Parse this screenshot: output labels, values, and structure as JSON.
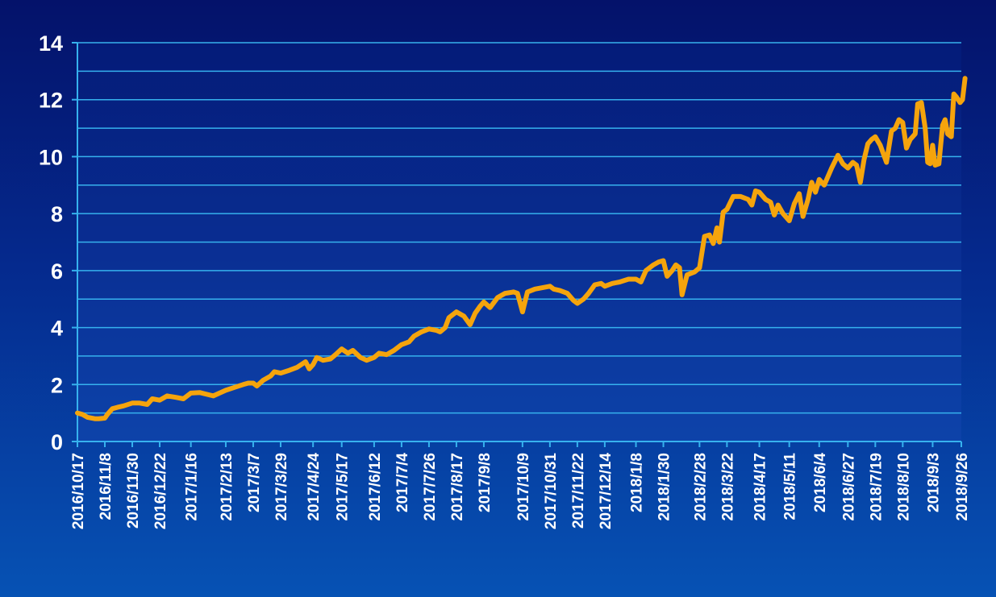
{
  "chart_data": {
    "type": "line",
    "title": "",
    "xlabel": "",
    "ylabel": "",
    "ylim": [
      0,
      14
    ],
    "y_ticks": [
      0,
      2,
      4,
      6,
      8,
      10,
      12,
      14
    ],
    "grid": true,
    "legend": "none",
    "x_tick_labels": [
      "2016/10/17",
      "2016/11/8",
      "2016/11/30",
      "2016/12/22",
      "2017/1/16",
      "2017/2/13",
      "2017/3/7",
      "2017/3/29",
      "2017/4/24",
      "2017/5/17",
      "2017/6/12",
      "2017/7/4",
      "2017/7/26",
      "2017/8/17",
      "2017/9/8",
      "2017/10/9",
      "2017/10/31",
      "2017/11/22",
      "2017/12/14",
      "2018/1/8",
      "2018/1/30",
      "2018/2/28",
      "2018/3/22",
      "2018/4/17",
      "2018/5/11",
      "2018/6/4",
      "2018/6/27",
      "2018/7/19",
      "2018/8/10",
      "2018/9/3",
      "2018/9/26"
    ],
    "series": [
      {
        "color": "#f5a40c",
        "points": [
          [
            "2016/10/17",
            1.0
          ],
          [
            "2016/10/21",
            0.95
          ],
          [
            "2016/10/25",
            0.85
          ],
          [
            "2016/10/31",
            0.8
          ],
          [
            "2016/11/3",
            0.8
          ],
          [
            "2016/11/8",
            0.82
          ],
          [
            "2016/11/10",
            0.95
          ],
          [
            "2016/11/14",
            1.15
          ],
          [
            "2016/11/18",
            1.2
          ],
          [
            "2016/11/23",
            1.25
          ],
          [
            "2016/11/30",
            1.35
          ],
          [
            "2016/12/6",
            1.35
          ],
          [
            "2016/12/12",
            1.3
          ],
          [
            "2016/12/16",
            1.5
          ],
          [
            "2016/12/22",
            1.45
          ],
          [
            "2016/12/28",
            1.6
          ],
          [
            "2017/1/4",
            1.55
          ],
          [
            "2017/1/10",
            1.5
          ],
          [
            "2017/1/16",
            1.7
          ],
          [
            "2017/1/23",
            1.72
          ],
          [
            "2017/2/3",
            1.6
          ],
          [
            "2017/2/8",
            1.7
          ],
          [
            "2017/2/13",
            1.8
          ],
          [
            "2017/2/20",
            1.9
          ],
          [
            "2017/2/27",
            2.0
          ],
          [
            "2017/3/3",
            2.05
          ],
          [
            "2017/3/7",
            2.05
          ],
          [
            "2017/3/10",
            1.95
          ],
          [
            "2017/3/15",
            2.15
          ],
          [
            "2017/3/21",
            2.3
          ],
          [
            "2017/3/24",
            2.45
          ],
          [
            "2017/3/29",
            2.4
          ],
          [
            "2017/4/5",
            2.5
          ],
          [
            "2017/4/11",
            2.6
          ],
          [
            "2017/4/18",
            2.8
          ],
          [
            "2017/4/21",
            2.55
          ],
          [
            "2017/4/24",
            2.7
          ],
          [
            "2017/4/27",
            2.95
          ],
          [
            "2017/5/2",
            2.85
          ],
          [
            "2017/5/8",
            2.9
          ],
          [
            "2017/5/12",
            3.05
          ],
          [
            "2017/5/17",
            3.25
          ],
          [
            "2017/5/22",
            3.1
          ],
          [
            "2017/5/26",
            3.2
          ],
          [
            "2017/6/1",
            2.95
          ],
          [
            "2017/6/6",
            2.85
          ],
          [
            "2017/6/12",
            2.95
          ],
          [
            "2017/6/16",
            3.1
          ],
          [
            "2017/6/22",
            3.05
          ],
          [
            "2017/6/28",
            3.2
          ],
          [
            "2017/7/4",
            3.4
          ],
          [
            "2017/7/10",
            3.5
          ],
          [
            "2017/7/14",
            3.7
          ],
          [
            "2017/7/20",
            3.85
          ],
          [
            "2017/7/26",
            3.95
          ],
          [
            "2017/8/1",
            3.9
          ],
          [
            "2017/8/4",
            3.85
          ],
          [
            "2017/8/8",
            4.0
          ],
          [
            "2017/8/11",
            4.35
          ],
          [
            "2017/8/17",
            4.55
          ],
          [
            "2017/8/23",
            4.4
          ],
          [
            "2017/8/28",
            4.1
          ],
          [
            "2017/9/1",
            4.5
          ],
          [
            "2017/9/5",
            4.75
          ],
          [
            "2017/9/8",
            4.9
          ],
          [
            "2017/9/13",
            4.7
          ],
          [
            "2017/9/19",
            5.05
          ],
          [
            "2017/9/25",
            5.2
          ],
          [
            "2017/10/2",
            5.25
          ],
          [
            "2017/10/5",
            5.2
          ],
          [
            "2017/10/9",
            4.55
          ],
          [
            "2017/10/13",
            5.25
          ],
          [
            "2017/10/19",
            5.35
          ],
          [
            "2017/10/25",
            5.4
          ],
          [
            "2017/10/31",
            5.45
          ],
          [
            "2017/11/3",
            5.35
          ],
          [
            "2017/11/8",
            5.3
          ],
          [
            "2017/11/14",
            5.2
          ],
          [
            "2017/11/19",
            4.95
          ],
          [
            "2017/11/22",
            4.85
          ],
          [
            "2017/11/27",
            5.0
          ],
          [
            "2017/12/1",
            5.2
          ],
          [
            "2017/12/6",
            5.5
          ],
          [
            "2017/12/11",
            5.55
          ],
          [
            "2017/12/14",
            5.45
          ],
          [
            "2017/12/20",
            5.55
          ],
          [
            "2017/12/26",
            5.6
          ],
          [
            "2018/1/2",
            5.7
          ],
          [
            "2018/1/8",
            5.7
          ],
          [
            "2018/1/12",
            5.6
          ],
          [
            "2018/1/16",
            6.0
          ],
          [
            "2018/1/22",
            6.2
          ],
          [
            "2018/1/26",
            6.3
          ],
          [
            "2018/1/30",
            6.35
          ],
          [
            "2018/2/2",
            5.8
          ],
          [
            "2018/2/6",
            6.0
          ],
          [
            "2018/2/9",
            6.2
          ],
          [
            "2018/2/12",
            6.1
          ],
          [
            "2018/2/14",
            5.15
          ],
          [
            "2018/2/18",
            5.85
          ],
          [
            "2018/2/24",
            5.95
          ],
          [
            "2018/2/28",
            6.1
          ],
          [
            "2018/3/4",
            7.2
          ],
          [
            "2018/3/8",
            7.25
          ],
          [
            "2018/3/11",
            6.95
          ],
          [
            "2018/3/14",
            7.5
          ],
          [
            "2018/3/16",
            7.0
          ],
          [
            "2018/3/19",
            8.05
          ],
          [
            "2018/3/22",
            8.15
          ],
          [
            "2018/3/27",
            8.6
          ],
          [
            "2018/4/2",
            8.6
          ],
          [
            "2018/4/8",
            8.5
          ],
          [
            "2018/4/11",
            8.3
          ],
          [
            "2018/4/14",
            8.8
          ],
          [
            "2018/4/17",
            8.75
          ],
          [
            "2018/4/22",
            8.5
          ],
          [
            "2018/4/26",
            8.4
          ],
          [
            "2018/4/29",
            7.95
          ],
          [
            "2018/5/2",
            8.3
          ],
          [
            "2018/5/6",
            8.0
          ],
          [
            "2018/5/11",
            7.75
          ],
          [
            "2018/5/15",
            8.35
          ],
          [
            "2018/5/19",
            8.7
          ],
          [
            "2018/5/22",
            7.9
          ],
          [
            "2018/5/26",
            8.5
          ],
          [
            "2018/5/29",
            9.1
          ],
          [
            "2018/6/1",
            8.75
          ],
          [
            "2018/6/4",
            9.2
          ],
          [
            "2018/6/8",
            9.0
          ],
          [
            "2018/6/14",
            9.6
          ],
          [
            "2018/6/19",
            10.05
          ],
          [
            "2018/6/23",
            9.75
          ],
          [
            "2018/6/27",
            9.6
          ],
          [
            "2018/7/1",
            9.8
          ],
          [
            "2018/7/4",
            9.7
          ],
          [
            "2018/7/7",
            9.1
          ],
          [
            "2018/7/10",
            9.9
          ],
          [
            "2018/7/13",
            10.45
          ],
          [
            "2018/7/16",
            10.6
          ],
          [
            "2018/7/19",
            10.7
          ],
          [
            "2018/7/23",
            10.4
          ],
          [
            "2018/7/28",
            9.8
          ],
          [
            "2018/8/1",
            10.9
          ],
          [
            "2018/8/4",
            11.0
          ],
          [
            "2018/8/7",
            11.3
          ],
          [
            "2018/8/10",
            11.2
          ],
          [
            "2018/8/13",
            10.3
          ],
          [
            "2018/8/16",
            10.6
          ],
          [
            "2018/8/20",
            10.8
          ],
          [
            "2018/8/22",
            11.85
          ],
          [
            "2018/8/25",
            11.9
          ],
          [
            "2018/8/28",
            11.0
          ],
          [
            "2018/8/30",
            9.8
          ],
          [
            "2018/9/1",
            9.75
          ],
          [
            "2018/9/3",
            10.4
          ],
          [
            "2018/9/5",
            9.7
          ],
          [
            "2018/9/8",
            9.75
          ],
          [
            "2018/9/11",
            11.1
          ],
          [
            "2018/9/13",
            11.3
          ],
          [
            "2018/9/15",
            10.8
          ],
          [
            "2018/9/18",
            10.7
          ],
          [
            "2018/9/20",
            12.2
          ],
          [
            "2018/9/22",
            12.1
          ],
          [
            "2018/9/25",
            11.9
          ],
          [
            "2018/9/27",
            12.0
          ],
          [
            "2018/9/29",
            12.75
          ]
        ]
      }
    ]
  }
}
